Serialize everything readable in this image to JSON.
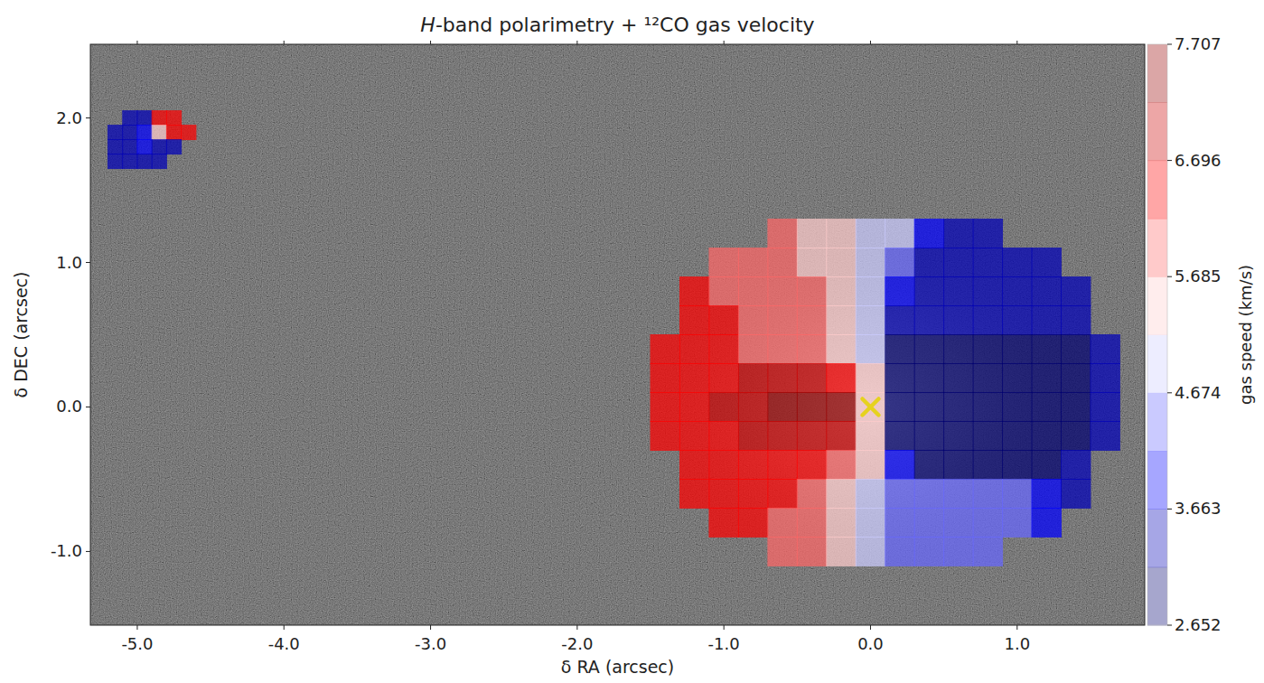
{
  "chart_data": {
    "type": "heatmap",
    "title": "H-band polarimetry + ¹²CO gas velocity",
    "x_label": "δ RA (arcsec)",
    "y_label": "δ DEC (arcsec)",
    "xlim": [
      -5.32,
      1.87
    ],
    "ylim": [
      -1.51,
      2.51
    ],
    "xticks": [
      {
        "value": -5.0,
        "label": "-5.0"
      },
      {
        "value": -4.0,
        "label": "-4.0"
      },
      {
        "value": -3.0,
        "label": "-3.0"
      },
      {
        "value": -2.0,
        "label": "-2.0"
      },
      {
        "value": -1.0,
        "label": "-1.0"
      },
      {
        "value": 0.0,
        "label": "0.0"
      },
      {
        "value": 1.0,
        "label": "1.0"
      }
    ],
    "yticks": [
      {
        "value": -1.0,
        "label": "-1.0"
      },
      {
        "value": 0.0,
        "label": "0.0"
      },
      {
        "value": 1.0,
        "label": "1.0"
      },
      {
        "value": 2.0,
        "label": "2.0"
      }
    ],
    "grid": false,
    "colorbar": {
      "label": "gas speed (km/s)",
      "range": [
        2.652,
        7.707
      ],
      "ticks": [
        2.652,
        3.663,
        4.674,
        5.685,
        6.696,
        7.707
      ],
      "levels": [
        2.652,
        3.1575,
        3.663,
        4.1685,
        4.674,
        5.1795,
        5.685,
        6.1905,
        6.696,
        7.2015,
        7.707
      ]
    },
    "maps": [
      {
        "x": [
          -1.4,
          -1.2,
          -1.0,
          -0.8,
          -0.6,
          -0.4,
          -0.2,
          0.0,
          0.2,
          0.4,
          0.6,
          0.8,
          1.0,
          1.2,
          1.4,
          1.6
        ],
        "y": [
          1.2,
          1.0,
          0.8,
          0.6,
          0.4,
          0.2,
          0.0,
          -0.2,
          -0.4,
          -0.6,
          -0.8,
          -1.0
        ],
        "values": [
          [
            null,
            null,
            null,
            null,
            5.9,
            5.4,
            5.4,
            4.9,
            4.9,
            3.9,
            3.4,
            3.4,
            null,
            null,
            null,
            null
          ],
          [
            null,
            null,
            5.9,
            5.9,
            5.9,
            5.4,
            5.4,
            4.9,
            4.4,
            3.4,
            3.4,
            3.4,
            3.4,
            3.4,
            null,
            null
          ],
          [
            null,
            6.45,
            5.9,
            5.9,
            5.9,
            5.9,
            5.4,
            4.9,
            3.9,
            3.4,
            3.4,
            3.4,
            3.4,
            3.4,
            3.4,
            null
          ],
          [
            null,
            6.45,
            6.45,
            5.9,
            5.9,
            5.9,
            5.4,
            4.9,
            3.4,
            3.4,
            3.4,
            3.4,
            3.4,
            3.4,
            3.4,
            null
          ],
          [
            6.45,
            6.45,
            6.45,
            5.9,
            5.9,
            5.9,
            5.4,
            4.9,
            2.9,
            2.9,
            2.9,
            2.9,
            2.9,
            2.9,
            2.9,
            3.4
          ],
          [
            6.45,
            6.45,
            6.45,
            6.95,
            6.95,
            6.95,
            6.45,
            5.2,
            2.9,
            2.7,
            2.7,
            2.7,
            2.9,
            2.9,
            2.9,
            3.4
          ],
          [
            6.45,
            6.45,
            6.95,
            6.95,
            7.45,
            7.45,
            7.45,
            5.18,
            2.7,
            2.7,
            2.7,
            2.7,
            2.9,
            2.9,
            2.9,
            3.4
          ],
          [
            6.45,
            6.45,
            6.45,
            6.95,
            6.95,
            6.95,
            6.95,
            5.4,
            2.9,
            2.7,
            2.7,
            2.9,
            2.9,
            2.9,
            2.9,
            3.4
          ],
          [
            null,
            6.45,
            6.45,
            6.45,
            6.45,
            6.45,
            5.9,
            5.4,
            3.9,
            2.9,
            2.9,
            2.9,
            2.9,
            2.9,
            3.4,
            null
          ],
          [
            null,
            6.45,
            6.45,
            6.45,
            6.45,
            5.9,
            5.4,
            4.9,
            4.4,
            4.4,
            4.4,
            4.4,
            4.4,
            3.9,
            3.4,
            null
          ],
          [
            null,
            null,
            6.45,
            6.45,
            5.9,
            5.9,
            5.4,
            4.9,
            4.4,
            4.4,
            4.4,
            4.4,
            4.4,
            3.9,
            null,
            null
          ],
          [
            null,
            null,
            null,
            null,
            5.9,
            5.9,
            5.4,
            4.9,
            4.4,
            4.4,
            4.4,
            4.4,
            null,
            null,
            null,
            null
          ]
        ]
      },
      {
        "x": [
          -5.15,
          -5.05,
          -4.95,
          -4.85,
          -4.75,
          -4.65
        ],
        "y": [
          2.0,
          1.9,
          1.8,
          1.7
        ],
        "values": [
          [
            null,
            3.4,
            3.4,
            6.45,
            6.45,
            null
          ],
          [
            3.4,
            3.4,
            3.9,
            5.4,
            6.45,
            6.45
          ],
          [
            3.4,
            3.4,
            3.9,
            3.4,
            3.4,
            null
          ],
          [
            3.4,
            3.4,
            3.4,
            3.4,
            null,
            null
          ]
        ]
      }
    ],
    "star": {
      "x": 0.0,
      "y": 0.0,
      "marker": "x",
      "color": "#e6d21e"
    }
  }
}
